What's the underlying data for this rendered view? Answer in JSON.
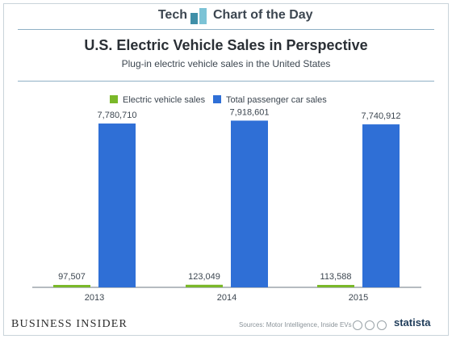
{
  "header": {
    "brand_left": "Tech",
    "brand_right": "Chart of the Day"
  },
  "chart_data": {
    "type": "bar",
    "title": "U.S. Electric Vehicle Sales in Perspective",
    "subtitle": "Plug-in electric vehicle sales in the United States",
    "categories": [
      "2013",
      "2014",
      "2015"
    ],
    "series": [
      {
        "name": "Electric vehicle sales",
        "values": [
          97507,
          123049,
          113588
        ],
        "labels": [
          "97,507",
          "123,049",
          "113,588"
        ],
        "color": "#7ab829"
      },
      {
        "name": "Total passenger car sales",
        "values": [
          7780710,
          7918601,
          7740912
        ],
        "labels": [
          "7,780,710",
          "7,918,601",
          "7,740,912"
        ],
        "color": "#2f6fd6"
      }
    ],
    "legend": "top",
    "ylim": [
      0,
      8000000
    ],
    "grid": false
  },
  "footer": {
    "publisher": "BUSINESS INSIDER",
    "sources": "Sources: Motor Intelligence, Inside EVs",
    "brand": "statista"
  }
}
